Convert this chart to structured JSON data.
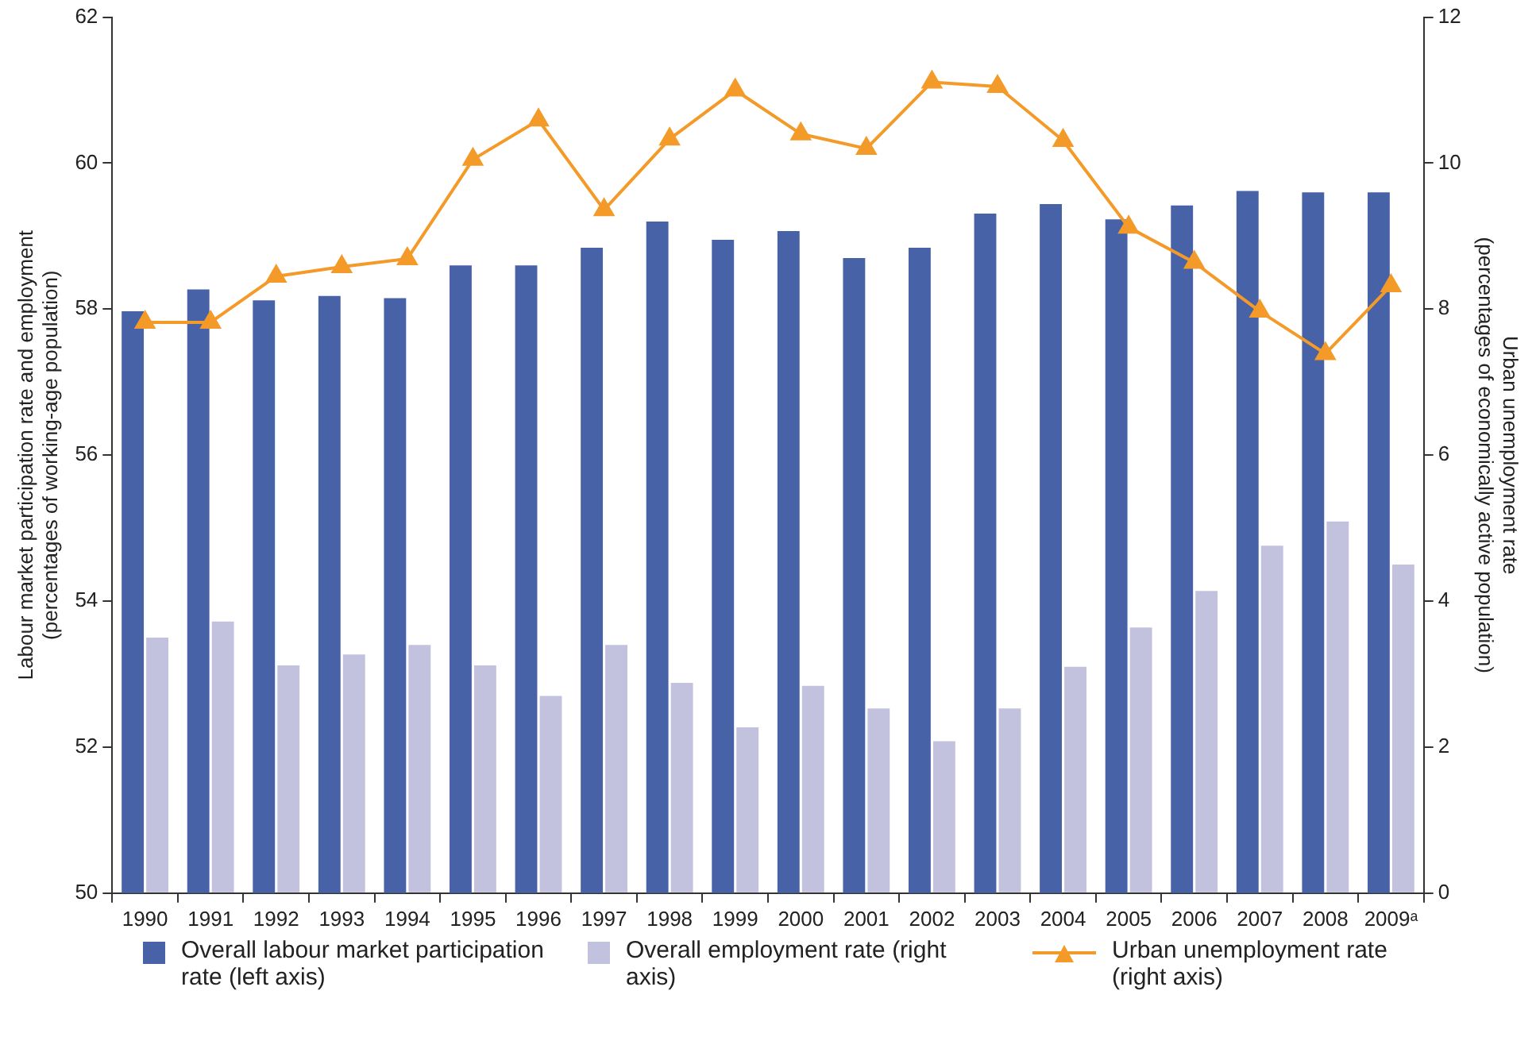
{
  "chart_data": {
    "type": "bar",
    "categories": [
      "1990",
      "1991",
      "1992",
      "1993",
      "1994",
      "1995",
      "1996",
      "1997",
      "1998",
      "1999",
      "2000",
      "2001",
      "2002",
      "2003",
      "2004",
      "2005",
      "2006",
      "2007",
      "2008",
      "2009ᵃ"
    ],
    "ylabel": "Labour market participation rate and employment\n(percentages of working-age population)",
    "y2label": "Urban unemployment rate\n(percentages of economically active population)",
    "series": [
      {
        "name": "Overall labour market participation rate (left axis)",
        "color": "#4862a8",
        "values": [
          57.97,
          58.27,
          58.12,
          58.18,
          58.15,
          58.6,
          58.6,
          58.84,
          59.2,
          58.95,
          59.07,
          58.7,
          58.84,
          59.31,
          59.44,
          59.23,
          59.42,
          59.62,
          59.6,
          59.6
        ]
      },
      {
        "name": "Overall employment rate (right axis)",
        "axis": "y2",
        "color": "#c2c1de",
        "values": [
          3.5,
          3.72,
          3.12,
          3.27,
          3.4,
          3.12,
          2.7,
          3.4,
          2.88,
          2.27,
          2.84,
          2.53,
          2.08,
          2.53,
          3.1,
          3.64,
          4.14,
          4.76,
          5.09,
          4.5
        ]
      },
      {
        "name": "Urban unemployment rate (right axis)",
        "type": "line",
        "axis": "y2",
        "color": "#f39a29",
        "marker": "triangle",
        "values": [
          7.82,
          7.82,
          8.45,
          8.58,
          8.69,
          10.05,
          10.59,
          9.36,
          10.33,
          11.0,
          10.4,
          10.2,
          11.11,
          11.05,
          10.31,
          9.12,
          8.64,
          7.97,
          7.39,
          8.32
        ]
      }
    ],
    "ylim": [
      50,
      62
    ],
    "yticks": [
      50,
      52,
      54,
      56,
      58,
      60,
      62
    ],
    "y2lim": [
      0,
      12
    ],
    "y2ticks": [
      0,
      2,
      4,
      6,
      8,
      10,
      12
    ],
    "grid": false,
    "legend": "bottom"
  }
}
